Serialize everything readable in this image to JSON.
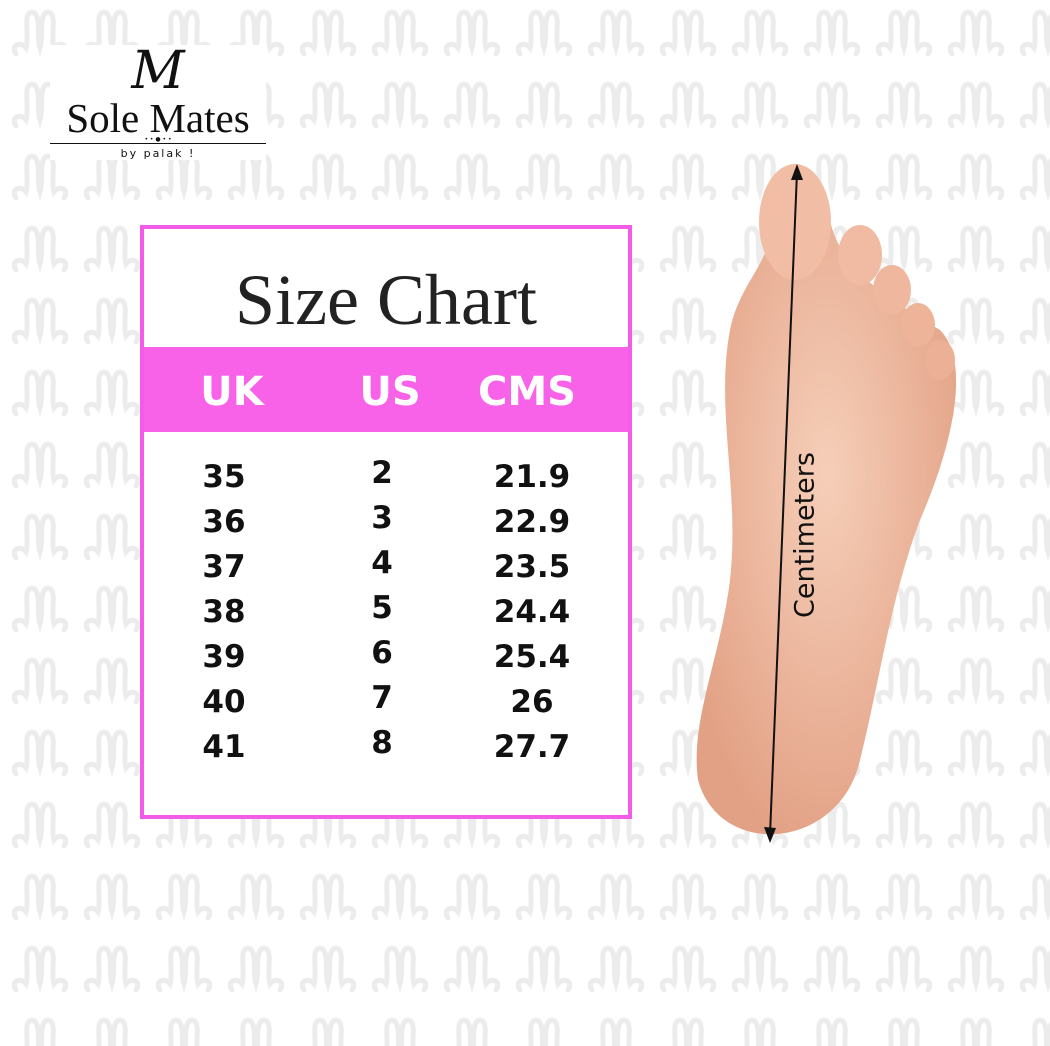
{
  "brand": {
    "name": "Sole Mates",
    "tagline": "by palak !",
    "logo_mark": "M"
  },
  "chart_title": "Size Chart",
  "colors": {
    "accent": "#f25ce6",
    "header_band": "#f862e9",
    "pattern": "#ececec",
    "skin": "#eeb49a"
  },
  "columns": [
    "UK",
    "US",
    "CMS"
  ],
  "rows": [
    [
      "35",
      "2",
      "21.9"
    ],
    [
      "36",
      "3",
      "22.9"
    ],
    [
      "37",
      "4",
      "23.5"
    ],
    [
      "38",
      "5",
      "24.4"
    ],
    [
      "39",
      "6",
      "25.4"
    ],
    [
      "40",
      "7",
      "26"
    ],
    [
      "41",
      "8",
      "27.7"
    ]
  ],
  "foot_label": "Centimeters",
  "icons": {
    "foot": "foot-sole-illustration",
    "measure": "double-arrow-line"
  }
}
